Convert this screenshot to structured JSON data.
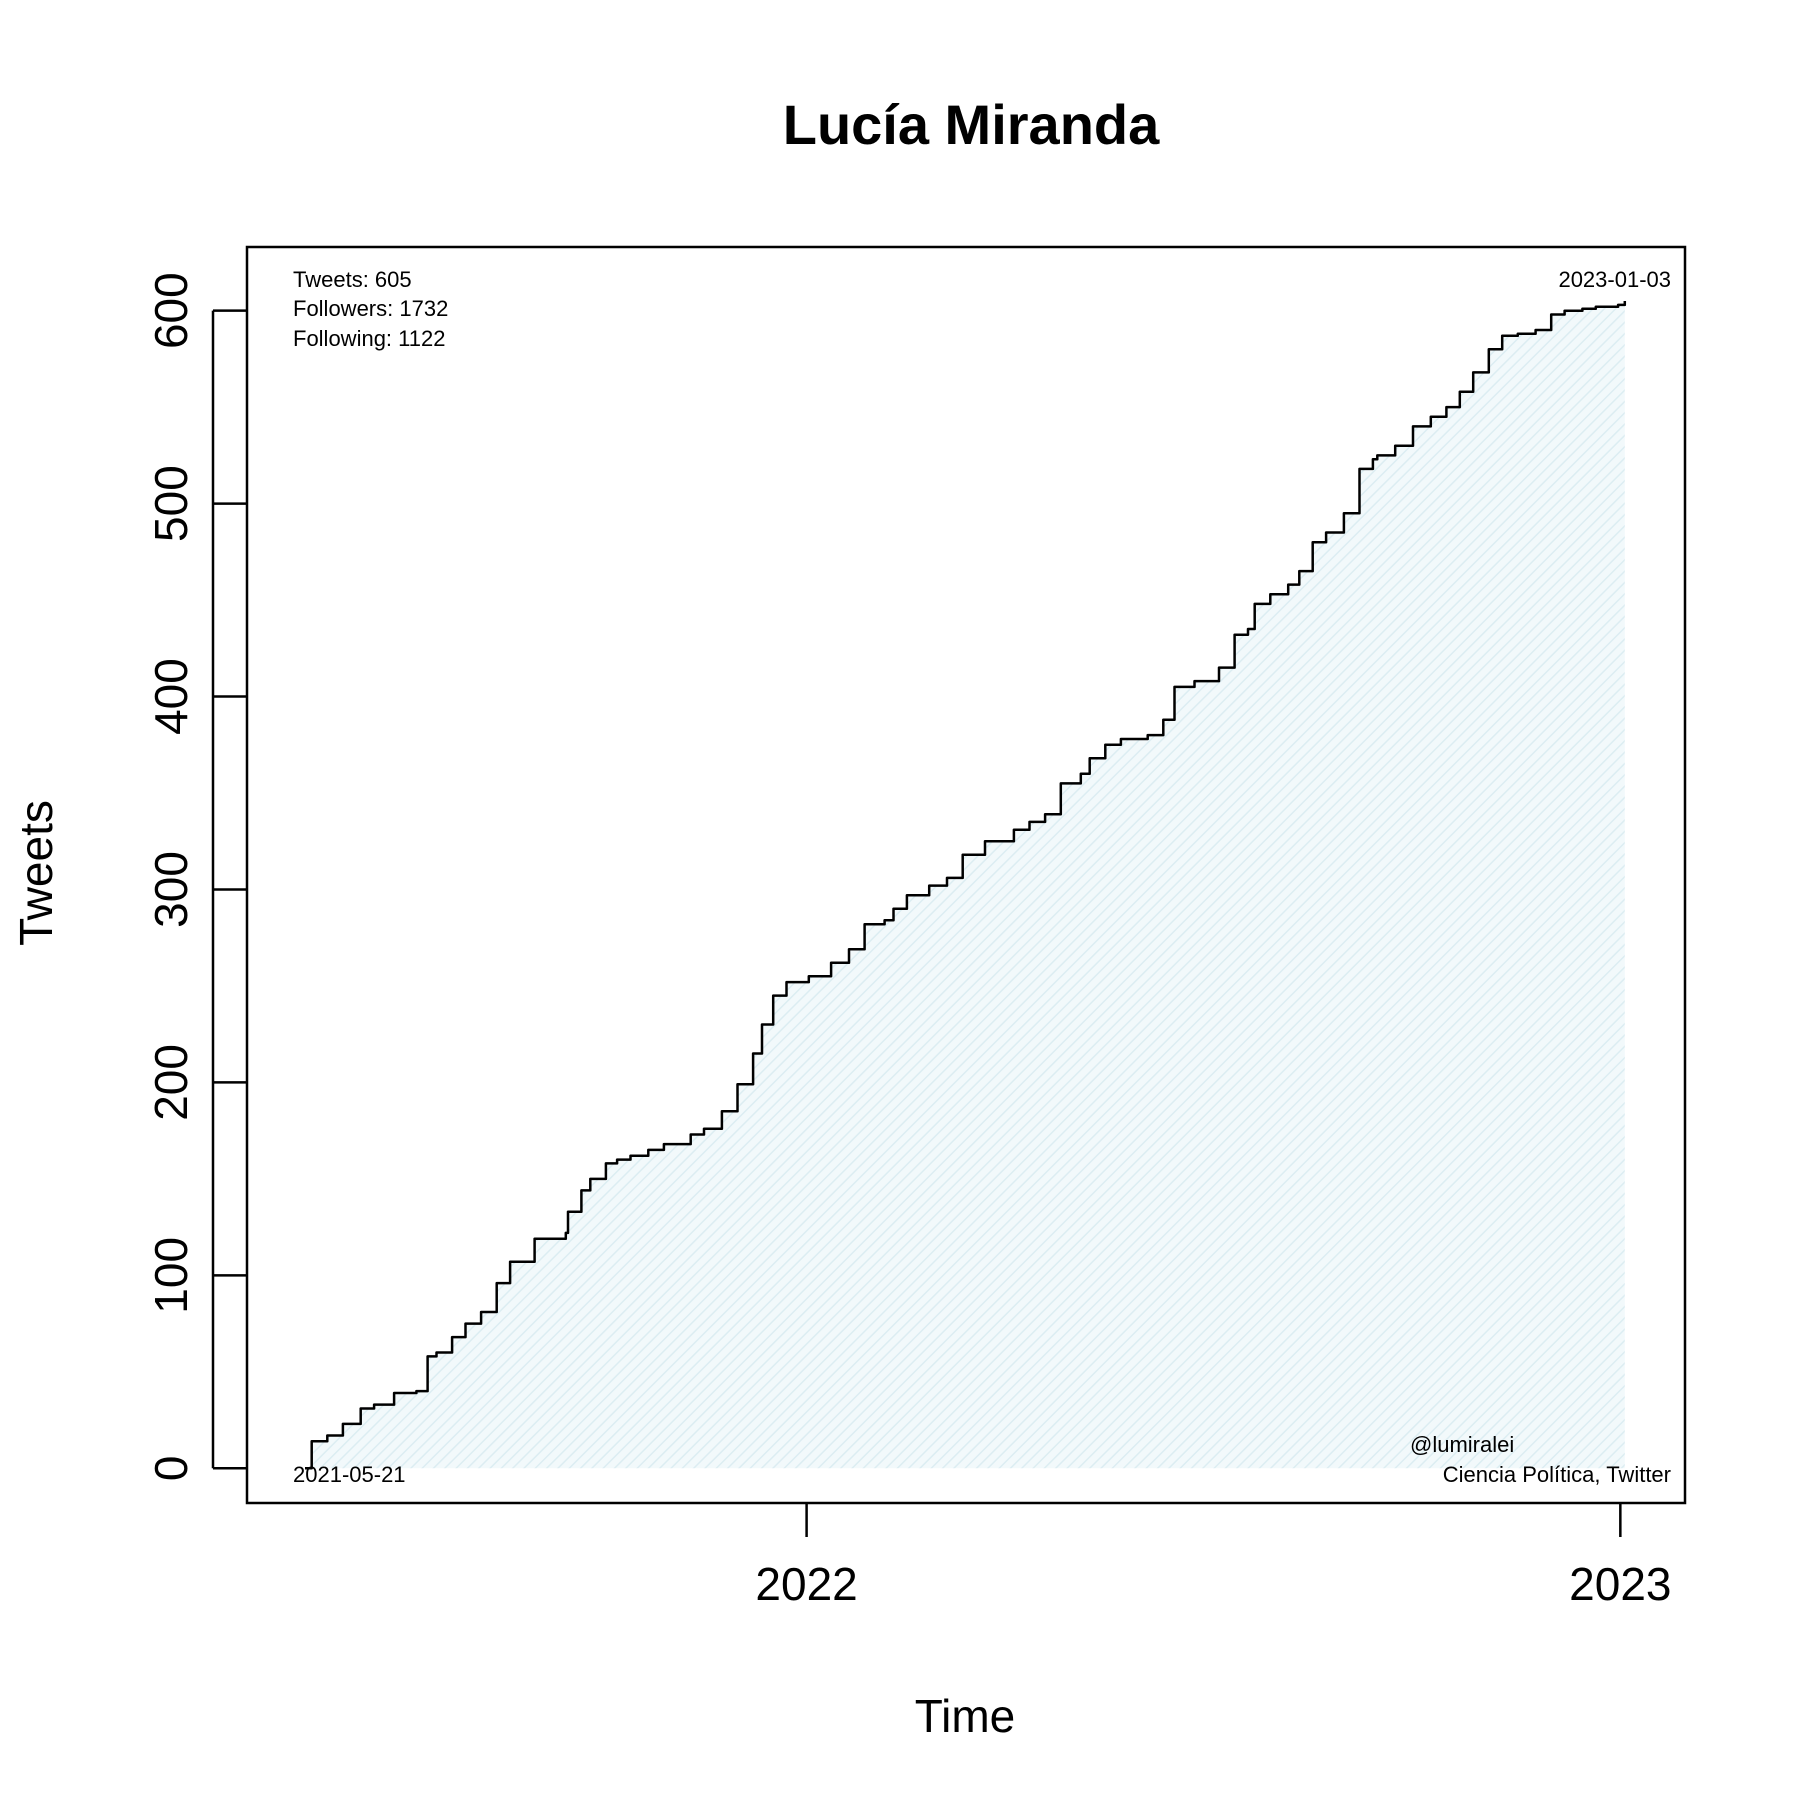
{
  "chart_data": {
    "type": "area",
    "title": "Lucía Miranda",
    "xlabel": "Time",
    "ylabel": "Tweets",
    "x_ticks": [
      "2022",
      "2023"
    ],
    "y_ticks": [
      0,
      100,
      200,
      300,
      400,
      500,
      600
    ],
    "ylim": [
      -18,
      633
    ],
    "xlim": [
      "2021-04-25",
      "2023-01-30"
    ],
    "grid": false,
    "fill_color": "#e6f3f7",
    "line_color": "#000000",
    "series": [
      {
        "x": [
          "2021-05-21",
          "2021-05-24",
          "2021-05-31",
          "2021-06-07",
          "2021-06-15",
          "2021-06-21",
          "2021-06-30",
          "2021-07-10",
          "2021-07-15",
          "2021-07-19",
          "2021-07-26",
          "2021-08-01",
          "2021-08-08",
          "2021-08-15",
          "2021-08-21",
          "2021-09-01",
          "2021-09-15",
          "2021-09-16",
          "2021-09-22",
          "2021-09-26",
          "2021-10-03",
          "2021-10-08",
          "2021-10-14",
          "2021-10-22",
          "2021-10-29",
          "2021-11-10",
          "2021-11-16",
          "2021-11-24",
          "2021-12-01",
          "2021-12-08",
          "2021-12-12",
          "2021-12-17",
          "2021-12-23",
          "2022-01-02",
          "2022-01-12",
          "2022-01-20",
          "2022-01-27",
          "2022-02-05",
          "2022-02-09",
          "2022-02-15",
          "2022-02-25",
          "2022-03-05",
          "2022-03-12",
          "2022-03-22",
          "2022-04-04",
          "2022-04-11",
          "2022-04-18",
          "2022-04-25",
          "2022-05-04",
          "2022-05-08",
          "2022-05-15",
          "2022-05-22",
          "2022-06-03",
          "2022-06-10",
          "2022-06-15",
          "2022-06-24",
          "2022-07-05",
          "2022-07-12",
          "2022-07-18",
          "2022-07-21",
          "2022-07-28",
          "2022-08-05",
          "2022-08-10",
          "2022-08-16",
          "2022-08-22",
          "2022-08-30",
          "2022-09-06",
          "2022-09-12",
          "2022-09-14",
          "2022-09-22",
          "2022-09-30",
          "2022-10-08",
          "2022-10-15",
          "2022-10-21",
          "2022-10-27",
          "2022-11-03",
          "2022-11-09",
          "2022-11-16",
          "2022-11-24",
          "2022-12-01",
          "2022-12-07",
          "2022-12-15",
          "2022-12-21",
          "2022-12-31",
          "2023-01-03"
        ],
        "y": [
          0,
          14,
          17,
          23,
          31,
          33,
          39,
          40,
          58,
          60,
          68,
          75,
          81,
          96,
          107,
          119,
          122,
          133,
          144,
          150,
          158,
          160,
          162,
          165,
          168,
          173,
          176,
          185,
          199,
          215,
          230,
          245,
          252,
          255,
          262,
          269,
          282,
          284,
          290,
          297,
          302,
          306,
          318,
          325,
          331,
          335,
          339,
          355,
          360,
          368,
          375,
          378,
          380,
          388,
          405,
          408,
          415,
          432,
          435,
          448,
          453,
          458,
          465,
          480,
          485,
          495,
          518,
          523,
          525,
          530,
          540,
          545,
          550,
          558,
          568,
          580,
          587,
          588,
          590,
          598,
          600,
          601,
          602,
          603,
          605
        ]
      }
    ]
  },
  "annotations": {
    "tweets": "Tweets: 605",
    "followers": "Followers: 1732",
    "following": "Following: 1122",
    "end_date": "2023-01-03",
    "start_date": "2021-05-21",
    "handle": "@lumiralei",
    "caption": "Ciencia Política, Twitter"
  }
}
